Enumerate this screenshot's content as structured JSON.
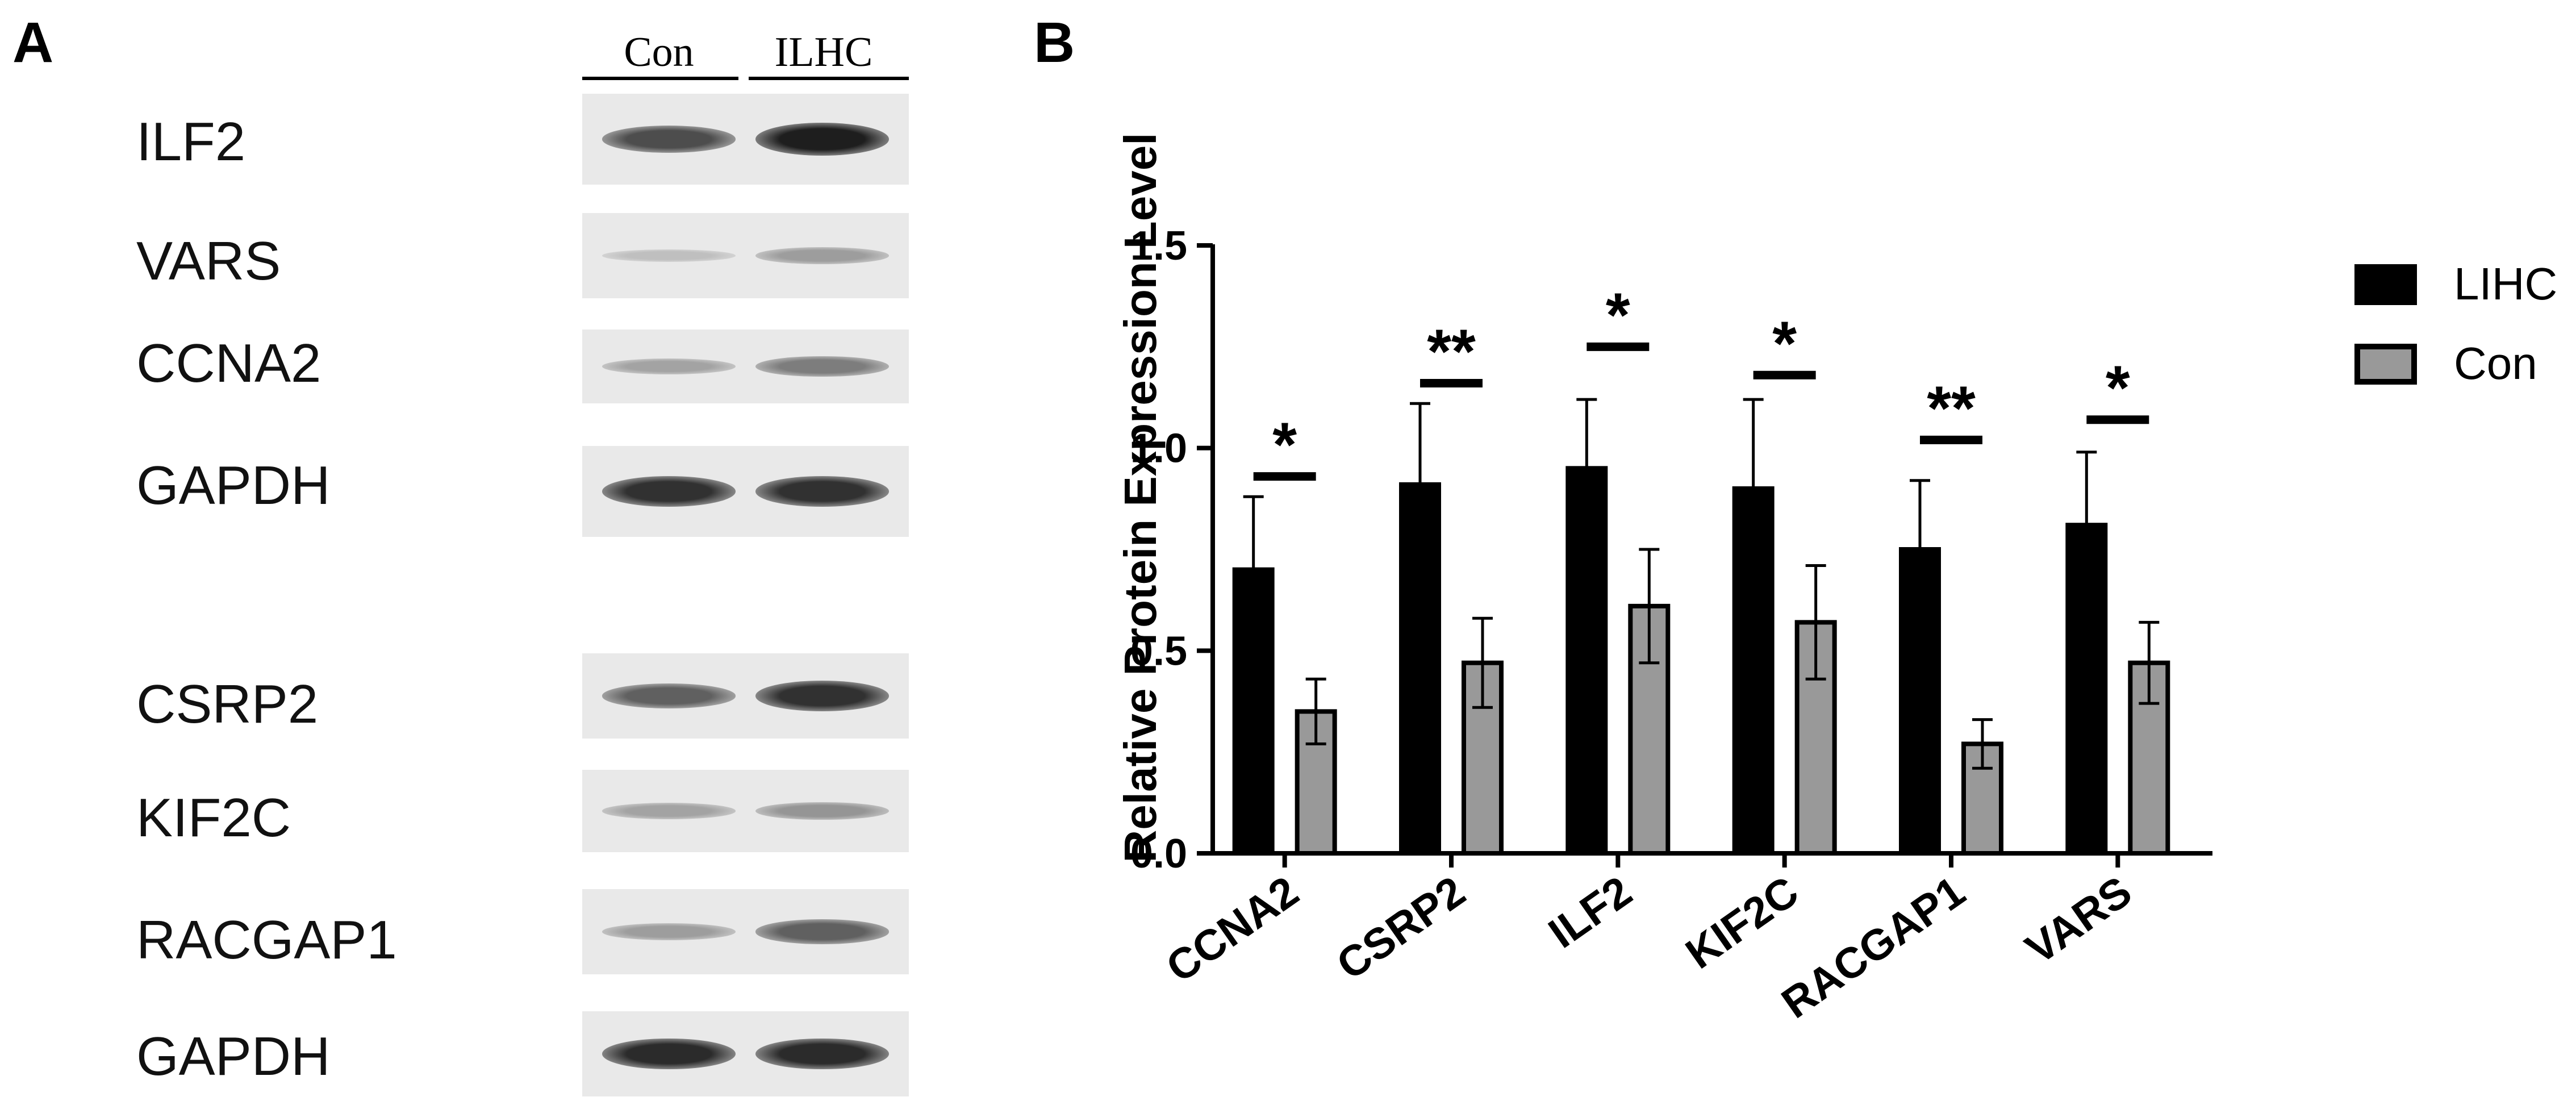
{
  "panel_a": {
    "letter": "A",
    "lane_headers": [
      "Con",
      "ILHC"
    ],
    "blots": [
      {
        "label": "ILF2",
        "con": 0.7,
        "ilhc": 0.95
      },
      {
        "label": "VARS",
        "con": 0.1,
        "ilhc": 0.28
      },
      {
        "label": "CCNA2",
        "con": 0.25,
        "ilhc": 0.45
      },
      {
        "label": "GAPDH",
        "con": 0.85,
        "ilhc": 0.85
      },
      {
        "label": "CSRP2",
        "con": 0.6,
        "ilhc": 0.85
      },
      {
        "label": "KIF2C",
        "con": 0.25,
        "ilhc": 0.32
      },
      {
        "label": "RACGAP1",
        "con": 0.28,
        "ilhc": 0.6
      },
      {
        "label": "GAPDH",
        "con": 0.88,
        "ilhc": 0.88
      }
    ]
  },
  "panel_b": {
    "letter": "B"
  },
  "chart_data": {
    "type": "bar",
    "title": "",
    "xlabel": "",
    "ylabel": "Relative Protein Expression Level",
    "ylim": [
      0,
      1.5
    ],
    "yticks": [
      "0.0",
      "0.5",
      "1.0",
      "1.5"
    ],
    "categories": [
      "CCNA2",
      "CSRP2",
      "ILF2",
      "KIF2C",
      "RACGAP1",
      "VARS"
    ],
    "series": [
      {
        "name": "LIHC",
        "color": "#000000",
        "values": [
          0.7,
          0.91,
          0.95,
          0.9,
          0.75,
          0.81
        ],
        "errors": [
          0.18,
          0.2,
          0.17,
          0.22,
          0.17,
          0.18
        ]
      },
      {
        "name": "Con",
        "color": "#999999",
        "values": [
          0.35,
          0.47,
          0.61,
          0.57,
          0.27,
          0.47
        ],
        "errors": [
          0.08,
          0.11,
          0.14,
          0.14,
          0.06,
          0.1
        ]
      }
    ],
    "significance": [
      "*",
      "**",
      "*",
      "*",
      "**",
      "*"
    ],
    "significance_y": [
      0.93,
      1.16,
      1.25,
      1.18,
      1.02,
      1.07
    ],
    "legend_position": "top-right",
    "grid": false
  }
}
